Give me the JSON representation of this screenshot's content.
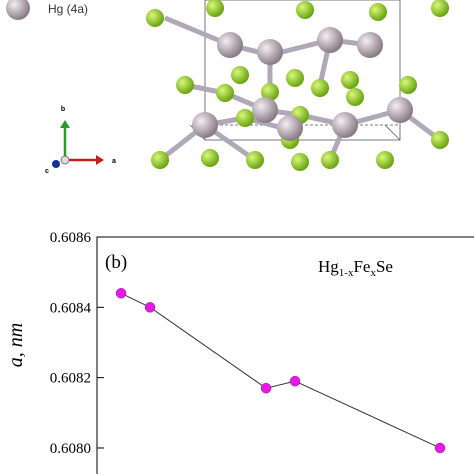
{
  "structure": {
    "legend_label": "Hg (4a)",
    "axis_labels": [
      "b",
      "c",
      "a"
    ]
  },
  "chart_data": {
    "type": "line",
    "panel_label": "(b)",
    "annotation": [
      "Hg",
      "1-x",
      "Fe",
      "x",
      "Se"
    ],
    "y_label": "a, nm",
    "x": [
      0,
      0.01,
      0.05,
      0.06,
      0.11
    ],
    "series": [
      {
        "color": "#e619e6",
        "values": [
          0.60844,
          0.6084,
          0.60817,
          0.60819,
          0.608
        ]
      }
    ],
    "xlim": [
      -0.0083,
      0.1217
    ],
    "ylim": [
      0.607926,
      0.6086
    ],
    "yticks": [
      {
        "value": 0.608,
        "label": "0.6080"
      },
      0.6082,
      0.6084,
      0.6086
    ]
  }
}
